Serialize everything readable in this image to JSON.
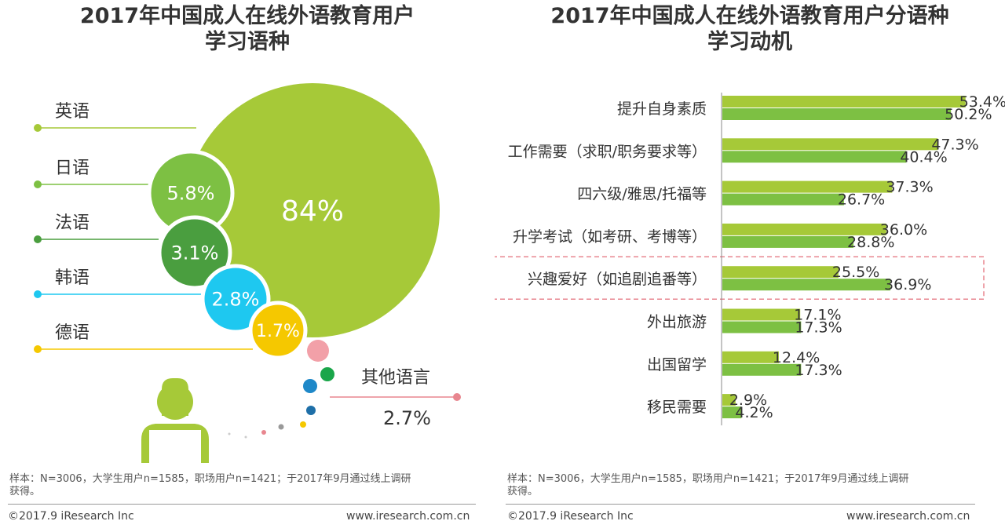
{
  "left": {
    "title_line1": "2017年中国成人在线外语教育用户",
    "title_line2": "学习语种",
    "sample_line1": "样本：N=3006，大学生用户n=1585，职场用户n=1421；于2017年9月通过线上调研",
    "sample_line2": "获得。",
    "copyright": "©2017.9 iResearch Inc",
    "url": "www.iresearch.com.cn"
  },
  "right": {
    "title_line1": "2017年中国成人在线外语教育用户分语种",
    "title_line2": "学习动机",
    "sample_line1": "样本：N=3006，大学生用户n=1585，职场用户n=1421；于2017年9月通过线上调研",
    "sample_line2": "获得。",
    "copyright": "©2017.9 iResearch Inc",
    "url": "www.iresearch.com.cn"
  },
  "chart_data": [
    {
      "type": "pie",
      "title": "2017年中国成人在线外语教育用户学习语种",
      "categories": [
        "英语",
        "日语",
        "法语",
        "韩语",
        "德语",
        "其他语言"
      ],
      "values": [
        84,
        5.8,
        3.1,
        2.8,
        1.7,
        2.7
      ],
      "value_labels": [
        "84%",
        "5.8%",
        "3.1%",
        "2.8%",
        "1.7%",
        "2.7%"
      ],
      "colors": [
        "#a6c938",
        "#7dc043",
        "#4a9e3f",
        "#1ec8f0",
        "#f5c800",
        "#e8868f"
      ],
      "style": "bubble"
    },
    {
      "type": "bar",
      "orientation": "horizontal",
      "title": "2017年中国成人在线外语教育用户分语种学习动机",
      "categories": [
        "提升自身素质",
        "工作需要（求职/职务要求等）",
        "四六级/雅思/托福等",
        "升学考试（如考研、考博等）",
        "兴趣爱好（如追剧追番等）",
        "外出旅游",
        "出国留学",
        "移民需要"
      ],
      "series": [
        {
          "values": [
            53.4,
            47.3,
            37.3,
            36.0,
            25.5,
            17.1,
            12.4,
            2.9
          ],
          "labels": [
            "53.4%",
            "47.3%",
            "37.3%",
            "36.0%",
            "25.5%",
            "17.1%",
            "12.4%",
            "2.9%"
          ],
          "color": "#a6c938"
        },
        {
          "values": [
            50.2,
            40.4,
            26.7,
            28.8,
            36.9,
            17.3,
            17.3,
            4.2
          ],
          "labels": [
            "50.2%",
            "40.4%",
            "26.7%",
            "28.8%",
            "36.9%",
            "17.3%",
            "17.3%",
            "4.2%"
          ],
          "color": "#7dc043"
        }
      ],
      "highlighted_category": "兴趣爱好（如追剧追番等）",
      "highlight_color": "#e8868f",
      "grid": false
    }
  ]
}
